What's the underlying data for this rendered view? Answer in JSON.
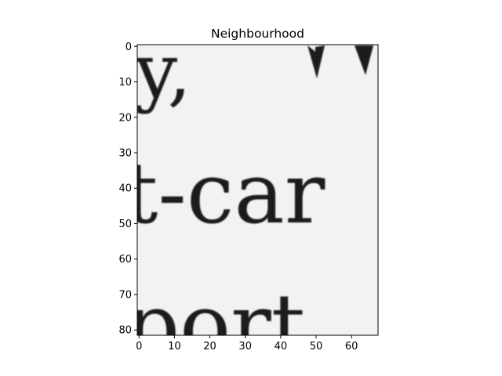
{
  "chart_data": {
    "type": "heatmap",
    "title": "Neighbourhood",
    "colormap": "grayscale",
    "image_content": "magnified scanned text: \"y, w\" / \"t-car\" / \"port\"",
    "xlim": [
      -0.5,
      67.5
    ],
    "ylim": [
      81.5,
      -0.5
    ],
    "x_ticks": [
      0,
      10,
      20,
      30,
      40,
      50,
      60
    ],
    "y_ticks": [
      0,
      10,
      20,
      30,
      40,
      50,
      60,
      70,
      80
    ],
    "x_tick_labels": [
      "0",
      "10",
      "20",
      "30",
      "40",
      "50",
      "60"
    ],
    "y_tick_labels": [
      "0",
      "10",
      "20",
      "30",
      "40",
      "50",
      "60",
      "70",
      "80"
    ],
    "grid": false,
    "legend": "none"
  },
  "colors": {
    "paper": "#f2f2f2",
    "ink": "#1a1a1a",
    "axes": "#000000"
  }
}
